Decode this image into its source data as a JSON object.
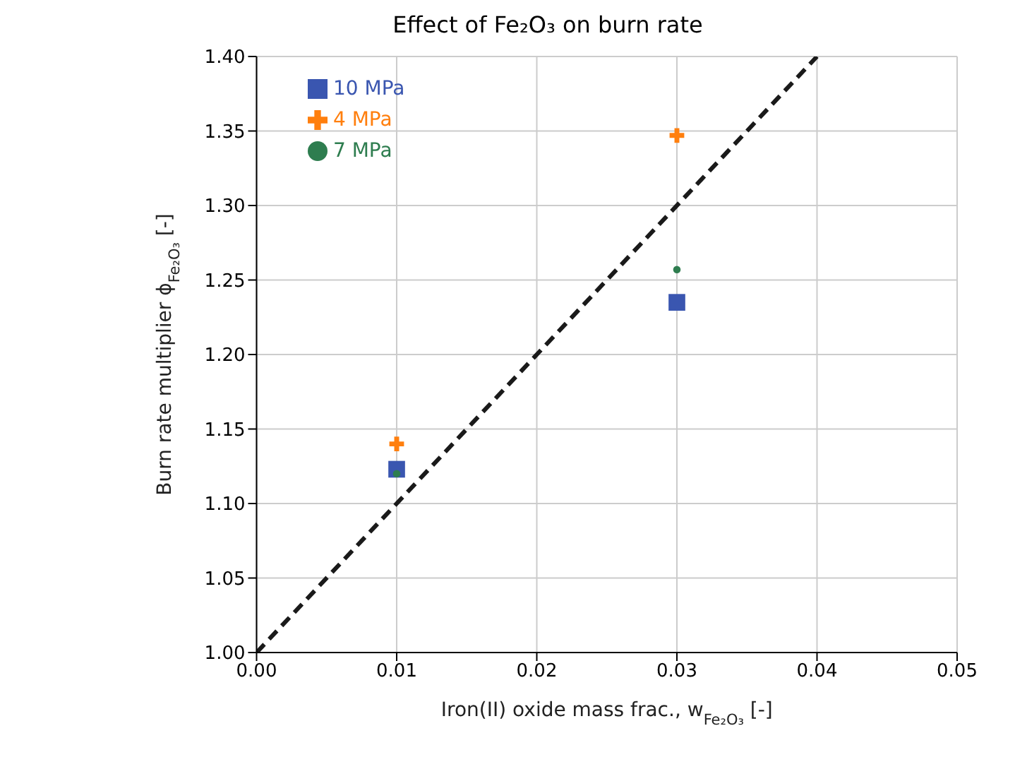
{
  "chart_data": {
    "type": "scatter",
    "title": "Effect of Fe₂O₃ on burn rate",
    "xlabel": "Iron(II) oxide mass frac., w$_{Fe₂O₃}$ [-]",
    "ylabel": "Burn rate multiplier ϕ$_{Fe₂O₃}$ [-]",
    "x": [
      0.01,
      0.03
    ],
    "series": [
      {
        "name": "10 MPa",
        "color": "#3a56b0",
        "values": [
          1.123,
          1.235
        ],
        "marker": "square"
      },
      {
        "name": "4 MPa",
        "color": "#ff7f0e",
        "values": [
          1.14,
          1.347
        ],
        "marker": "cross"
      },
      {
        "name": "7 MPa",
        "color": "#2e7d4f",
        "values": [
          1.12,
          1.257
        ],
        "marker": "circle"
      },
      {
        "type": "line",
        "x": [
          0,
          0.04
        ],
        "values": [
          1,
          1.4
        ],
        "color": "#1a1a1a",
        "line_style": "dashed",
        "marker": "none"
      }
    ],
    "xlim": [
      0,
      0.05
    ],
    "xticks": [
      {
        "value": 0,
        "label": "0.00"
      },
      0.01,
      0.02,
      0.03,
      0.04,
      0.05
    ],
    "ylim": [
      1,
      1.4
    ],
    "yticks": [
      {
        "value": 1,
        "label": "1.00"
      },
      1.05,
      {
        "value": 1.1,
        "label": "1.10"
      },
      1.15,
      {
        "value": 1.2,
        "label": "1.20"
      },
      1.25,
      {
        "value": 1.3,
        "label": "1.30"
      },
      1.35,
      {
        "value": 1.4,
        "label": "1.40"
      }
    ],
    "grid": true,
    "legend": "top left"
  }
}
